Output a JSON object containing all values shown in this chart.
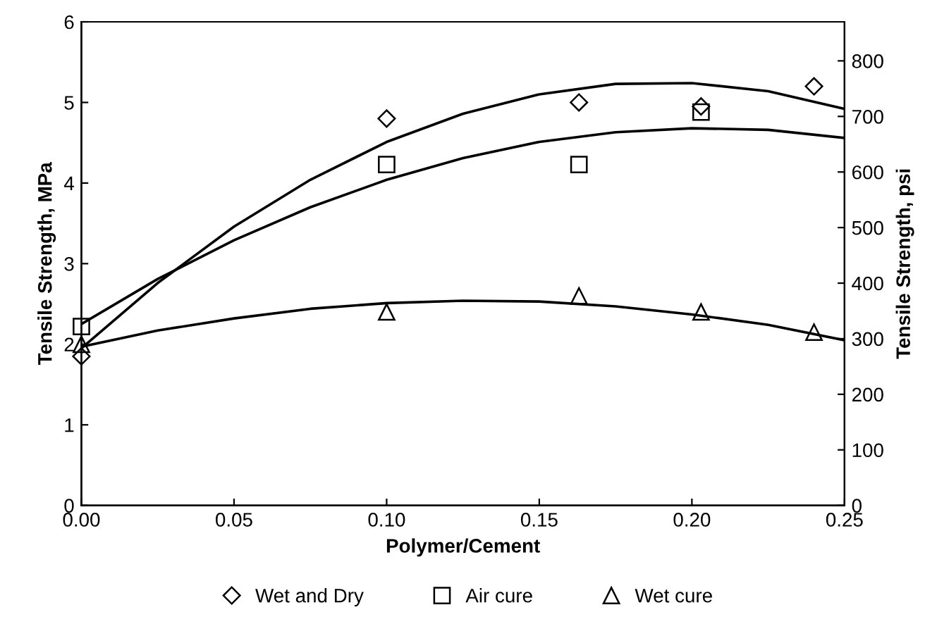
{
  "chart_data": {
    "type": "scatter",
    "xlabel": "Polymer/Cement",
    "ylabel": "Tensile Strength, MPa",
    "y2label": "Tensile Strength, psi",
    "xlim": [
      0,
      0.25
    ],
    "xticks": [
      {
        "value": 0,
        "label": "0.00"
      },
      {
        "value": 0.05,
        "label": "0.05"
      },
      {
        "value": 0.1,
        "label": "0.10"
      },
      {
        "value": 0.15,
        "label": "0.15"
      },
      {
        "value": 0.2,
        "label": "0.20"
      },
      {
        "value": 0.25,
        "label": "0.25"
      }
    ],
    "ylim": [
      0,
      6
    ],
    "yticks": [
      0,
      1,
      2,
      3,
      4,
      5,
      6
    ],
    "y2lim": [
      0,
      870.2
    ],
    "y2ticks": [
      0,
      100,
      200,
      300,
      400,
      500,
      600,
      700,
      800
    ],
    "grid": false,
    "legend": "bottom",
    "series": [
      {
        "name": "Wet and Dry",
        "color": "#000000",
        "marker": "diamond",
        "x": [
          0,
          0.1,
          0.163,
          0.203,
          0.24
        ],
        "values": [
          1.85,
          4.8,
          5.0,
          4.95,
          5.2
        ]
      },
      {
        "name": "Air cure",
        "color": "#000000",
        "marker": "square",
        "x": [
          0,
          0.1,
          0.163,
          0.203
        ],
        "values": [
          2.22,
          4.23,
          4.23,
          4.88
        ]
      },
      {
        "name": "Wet cure",
        "color": "#000000",
        "marker": "triangle",
        "x": [
          0,
          0.1,
          0.163,
          0.203,
          0.24
        ],
        "values": [
          2.0,
          2.4,
          2.6,
          2.4,
          2.15
        ]
      },
      {
        "type": "line",
        "color": "#000000",
        "marker": "none",
        "x": [
          0,
          0.025,
          0.05,
          0.075,
          0.1,
          0.125,
          0.15,
          0.175,
          0.2,
          0.225,
          0.25
        ],
        "values": [
          1.95,
          2.76,
          3.46,
          4.04,
          4.51,
          4.86,
          5.1,
          5.23,
          5.24,
          5.14,
          4.92
        ]
      },
      {
        "type": "line",
        "color": "#000000",
        "marker": "none",
        "x": [
          0,
          0.025,
          0.05,
          0.075,
          0.1,
          0.125,
          0.15,
          0.175,
          0.2,
          0.225,
          0.25
        ],
        "values": [
          2.25,
          2.81,
          3.29,
          3.7,
          4.04,
          4.31,
          4.51,
          4.63,
          4.68,
          4.66,
          4.56
        ]
      },
      {
        "type": "line",
        "color": "#000000",
        "marker": "none",
        "x": [
          0,
          0.025,
          0.05,
          0.075,
          0.1,
          0.125,
          0.15,
          0.175,
          0.2,
          0.225,
          0.25
        ],
        "values": [
          1.97,
          2.17,
          2.32,
          2.44,
          2.51,
          2.54,
          2.53,
          2.47,
          2.37,
          2.24,
          2.05
        ]
      }
    ]
  }
}
